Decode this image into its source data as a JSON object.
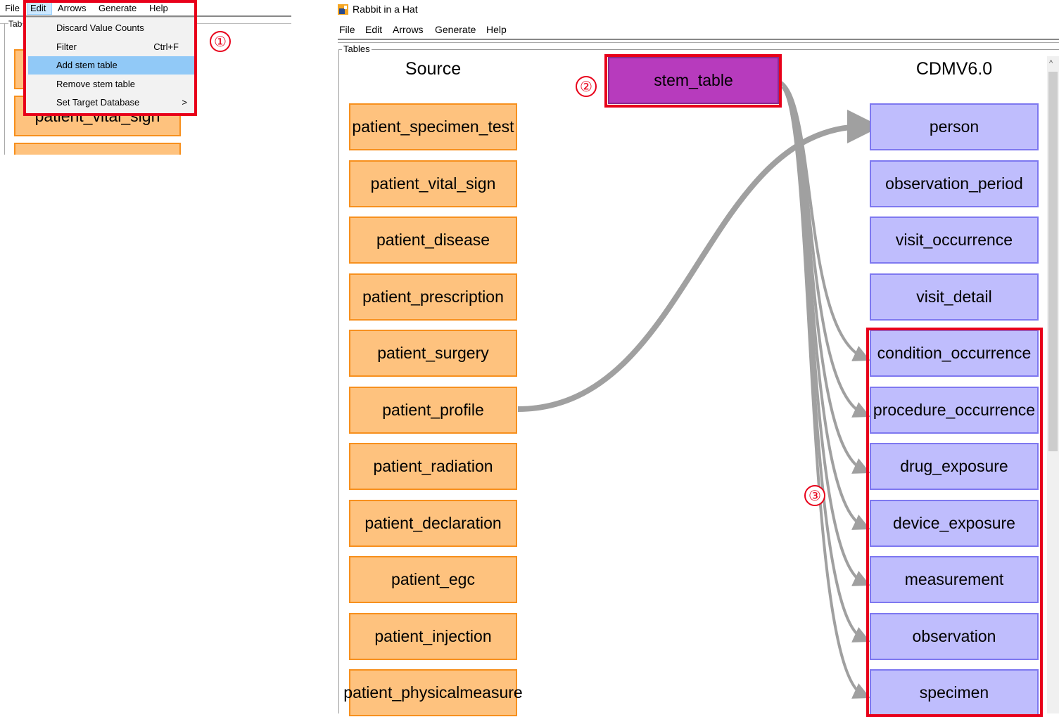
{
  "small_window": {
    "menu": [
      "File",
      "Edit",
      "Arrows",
      "Generate",
      "Help"
    ],
    "panel_label": "Tab",
    "partial_boxes": [
      "patient_vital_sign"
    ]
  },
  "edit_menu": {
    "items": [
      {
        "label": "Discard Value Counts",
        "shortcut": ""
      },
      {
        "label": "Filter",
        "shortcut": "Ctrl+F"
      },
      {
        "label": "Add stem table",
        "shortcut": ""
      },
      {
        "label": "Remove stem table",
        "shortcut": ""
      },
      {
        "label": "Set Target Database",
        "shortcut": ">"
      }
    ],
    "highlighted": "Add stem table"
  },
  "window": {
    "title": "Rabbit in a Hat",
    "menu": [
      "File",
      "Edit",
      "Arrows",
      "Generate",
      "Help"
    ],
    "panel_label": "Tables"
  },
  "source": {
    "heading": "Source",
    "tables": [
      "patient_specimen_test",
      "patient_vital_sign",
      "patient_disease",
      "patient_prescription",
      "patient_surgery",
      "patient_profile",
      "patient_radiation",
      "patient_declaration",
      "patient_egc",
      "patient_injection",
      "patient_physicalmeasure"
    ]
  },
  "stem": {
    "label": "stem_table",
    "color": "#b73bbd"
  },
  "target": {
    "heading": "CDMV6.0",
    "tables": [
      "person",
      "observation_period",
      "visit_occurrence",
      "visit_detail",
      "condition_occurrence",
      "procedure_occurrence",
      "drug_exposure",
      "device_exposure",
      "measurement",
      "observation",
      "specimen"
    ]
  },
  "annotations": [
    "①",
    "②",
    "③"
  ],
  "colors": {
    "source_fill": "#fec27e",
    "target_fill": "#bfbdfd",
    "highlight": "#e8001a",
    "arrow": "#a0a0a0"
  }
}
